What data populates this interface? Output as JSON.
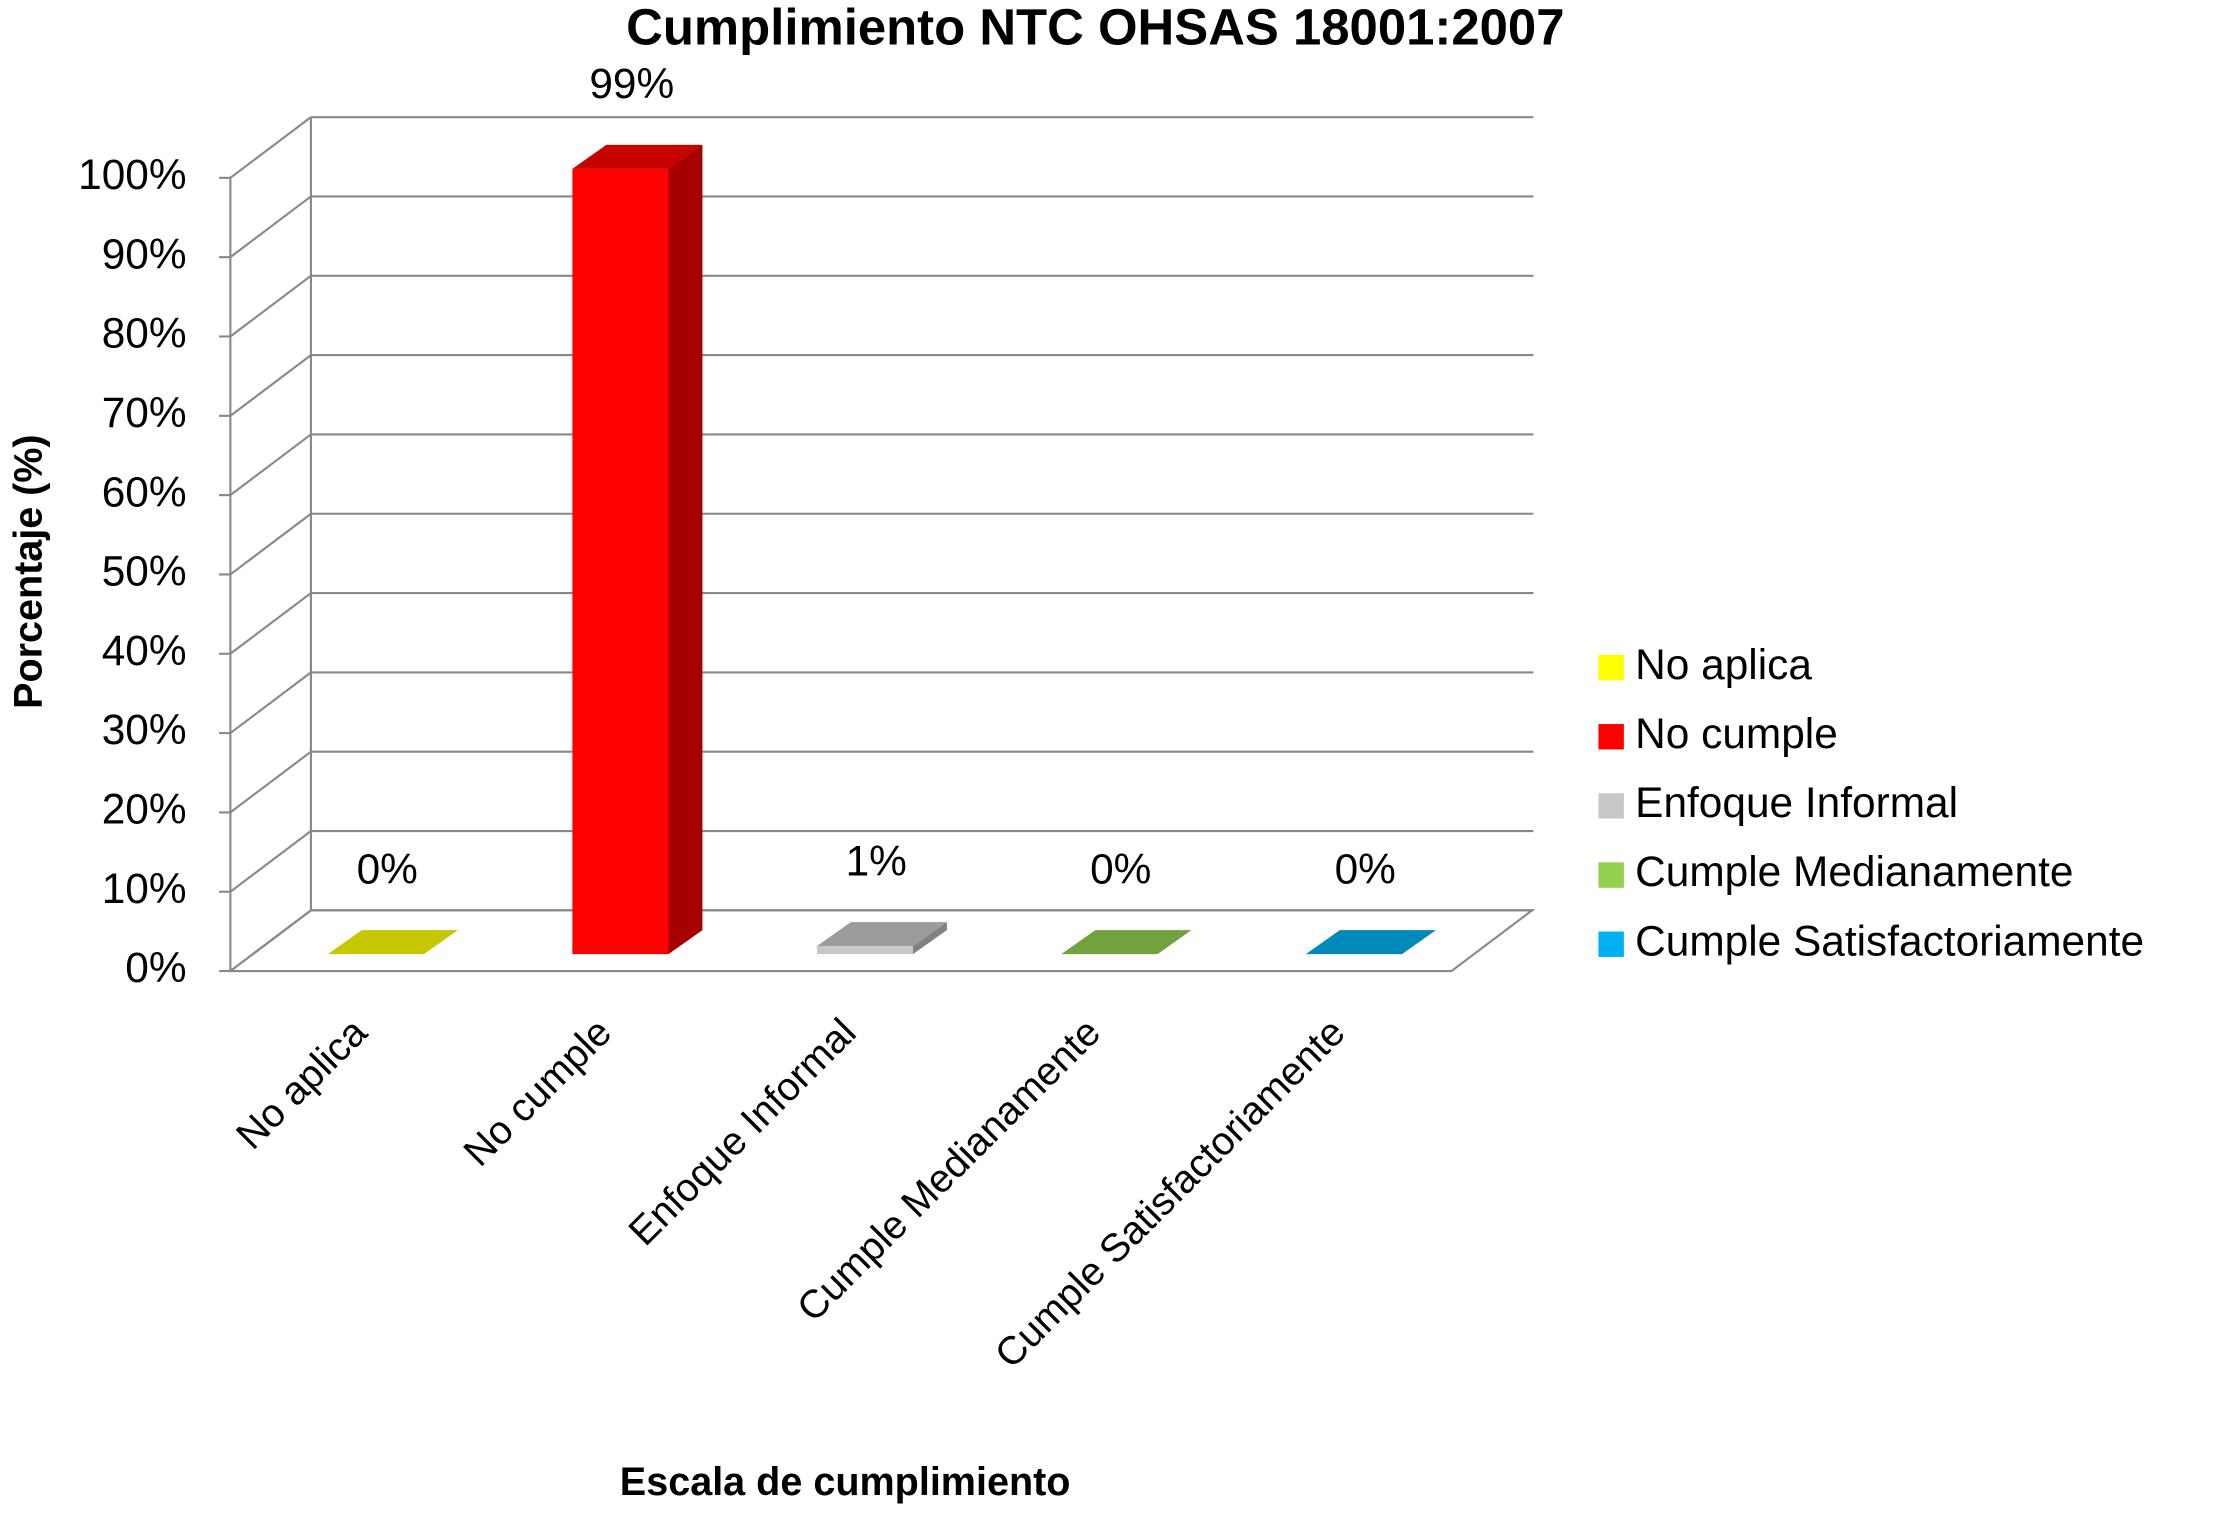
{
  "chart_data": {
    "type": "bar3d",
    "title": "Cumplimiento NTC OHSAS 18001:2007",
    "y_label": "Porcentaje (%)",
    "x_label": "Escala de cumplimiento",
    "categories": [
      "No aplica",
      "No cumple",
      "Enfoque Informal",
      "Cumple Medianamente",
      "Cumple Satisfactoriamente"
    ],
    "values": [
      0,
      99,
      1,
      0,
      0
    ],
    "value_labels": [
      "0%",
      "99%",
      "1%",
      "0%",
      "0%"
    ],
    "colors": [
      "#ffff00",
      "#ff0000",
      "#c8c8c8",
      "#92d050",
      "#00b0f0"
    ],
    "ylim": [
      0,
      100
    ],
    "yticks": [
      {
        "value": 0,
        "label": "0%"
      },
      {
        "value": 10,
        "label": "10%"
      },
      {
        "value": 20,
        "label": "20%"
      },
      {
        "value": 30,
        "label": "30%"
      },
      {
        "value": 40,
        "label": "40%"
      },
      {
        "value": 50,
        "label": "50%"
      },
      {
        "value": 60,
        "label": "60%"
      },
      {
        "value": 70,
        "label": "70%"
      },
      {
        "value": 80,
        "label": "80%"
      },
      {
        "value": 90,
        "label": "90%"
      },
      {
        "value": 100,
        "label": "100%"
      }
    ],
    "grid": true,
    "legend": "right"
  }
}
